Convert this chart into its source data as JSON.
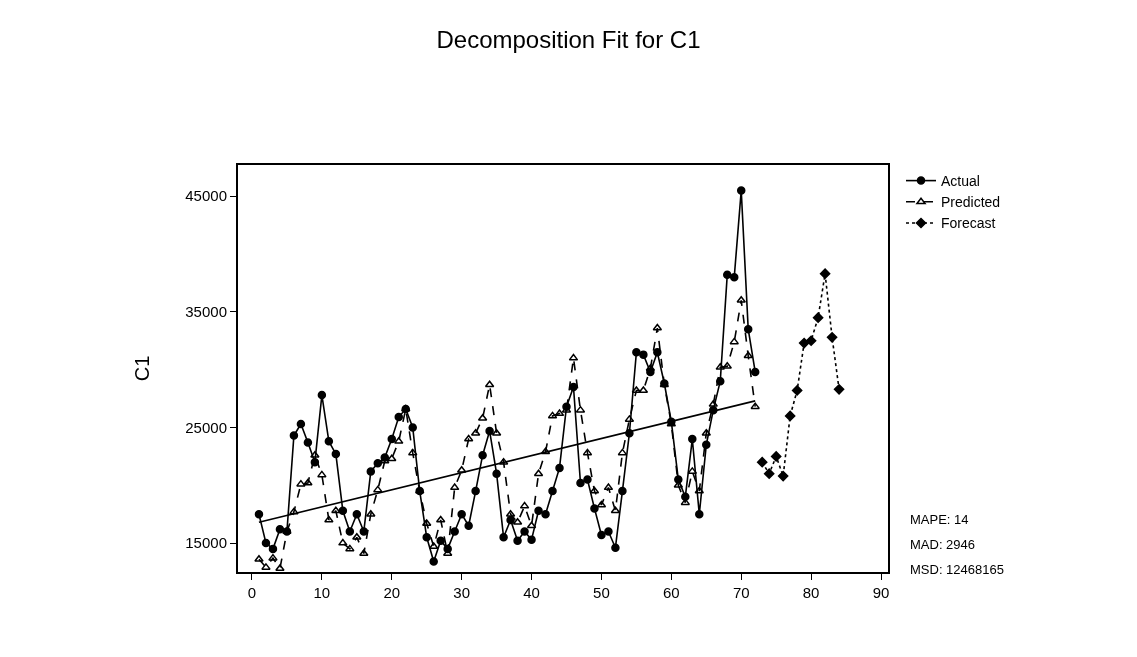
{
  "chart_data": {
    "type": "line",
    "title": "Decomposition Fit for C1",
    "ylabel": "C1",
    "xlim": [
      -2,
      91
    ],
    "xticks": [
      0,
      10,
      20,
      30,
      40,
      50,
      60,
      70,
      80,
      90
    ],
    "ylim": [
      12500,
      47700
    ],
    "yticks": [
      15000,
      25000,
      35000,
      45000
    ],
    "legend": "top right",
    "annotations": [
      "MAPE: 14",
      "MAD: 2946",
      "MSD: 12468165"
    ],
    "series": [
      {
        "name": "Actual",
        "color": "#000000",
        "marker": "circle",
        "line_style": "solid",
        "x": [
          1,
          2,
          3,
          4,
          5,
          6,
          7,
          8,
          9,
          10,
          11,
          12,
          13,
          14,
          15,
          16,
          17,
          18,
          19,
          20,
          21,
          22,
          23,
          24,
          25,
          26,
          27,
          28,
          29,
          30,
          31,
          32,
          33,
          34,
          35,
          36,
          37,
          38,
          39,
          40,
          41,
          42,
          43,
          44,
          45,
          46,
          47,
          48,
          49,
          50,
          51,
          52,
          53,
          54,
          55,
          56,
          57,
          58,
          59,
          60,
          61,
          62,
          63,
          64,
          65,
          66,
          67,
          68,
          69,
          70,
          71,
          72
        ],
        "values": [
          17500,
          15000,
          14500,
          16200,
          16000,
          24300,
          25300,
          23700,
          22000,
          27800,
          23800,
          22700,
          17800,
          16000,
          17500,
          16000,
          21200,
          21900,
          22400,
          24000,
          25900,
          26600,
          25000,
          19500,
          15500,
          13400,
          15200,
          14500,
          16000,
          17500,
          16500,
          19500,
          22600,
          24700,
          21000,
          15500,
          17000,
          15200,
          16000,
          15300,
          17800,
          17500,
          19500,
          21500,
          26800,
          28500,
          20200,
          20500,
          18000,
          15700,
          16000,
          14600,
          19500,
          24500,
          31500,
          31300,
          29800,
          31500,
          28800,
          25500,
          20500,
          19000,
          24000,
          17500,
          23500,
          26500,
          29000,
          38200,
          38000,
          45500,
          33500,
          29800
        ]
      },
      {
        "name": "Predicted",
        "color": "#000000",
        "marker": "triangle",
        "line_style": "dashed",
        "x": [
          1,
          2,
          3,
          4,
          5,
          6,
          7,
          8,
          9,
          10,
          11,
          12,
          13,
          14,
          15,
          16,
          17,
          18,
          19,
          20,
          21,
          22,
          23,
          24,
          25,
          26,
          27,
          28,
          29,
          30,
          31,
          32,
          33,
          34,
          35,
          36,
          37,
          38,
          39,
          40,
          41,
          42,
          43,
          44,
          45,
          46,
          47,
          48,
          49,
          50,
          51,
          52,
          53,
          54,
          55,
          56,
          57,
          58,
          59,
          60,
          61,
          62,
          63,
          64,
          65,
          66,
          67,
          68,
          69,
          70,
          71,
          72
        ],
        "values": [
          13600,
          12900,
          13700,
          12800,
          16000,
          17700,
          20100,
          20200,
          22600,
          20900,
          17000,
          17800,
          15000,
          14500,
          15500,
          14100,
          17500,
          19600,
          22100,
          22300,
          23800,
          26600,
          22800,
          19500,
          16700,
          14700,
          17000,
          14100,
          19800,
          21300,
          24000,
          24500,
          25800,
          28700,
          24500,
          22000,
          17500,
          16800,
          18200,
          16500,
          21000,
          22900,
          26000,
          26200,
          26500,
          31000,
          26500,
          22800,
          19500,
          18300,
          19800,
          17800,
          22800,
          25700,
          28200,
          28200,
          30100,
          33600,
          28700,
          25300,
          20000,
          18500,
          21200,
          19500,
          24500,
          27000,
          30200,
          30300,
          32400,
          36000,
          31200,
          26800
        ]
      },
      {
        "name": "Forecast",
        "color": "#000000",
        "marker": "diamond",
        "line_style": "dotted",
        "x": [
          73,
          74,
          75,
          76,
          77,
          78,
          79,
          80,
          81,
          82,
          83,
          84
        ],
        "values": [
          22000,
          21000,
          22500,
          20800,
          26000,
          28200,
          32300,
          32500,
          34500,
          38300,
          32800,
          28300
        ]
      },
      {
        "type": "line",
        "color": "#000000",
        "marker": "none",
        "line_style": "solid",
        "x": [
          1,
          72
        ],
        "values": [
          16800,
          27300
        ]
      }
    ]
  }
}
